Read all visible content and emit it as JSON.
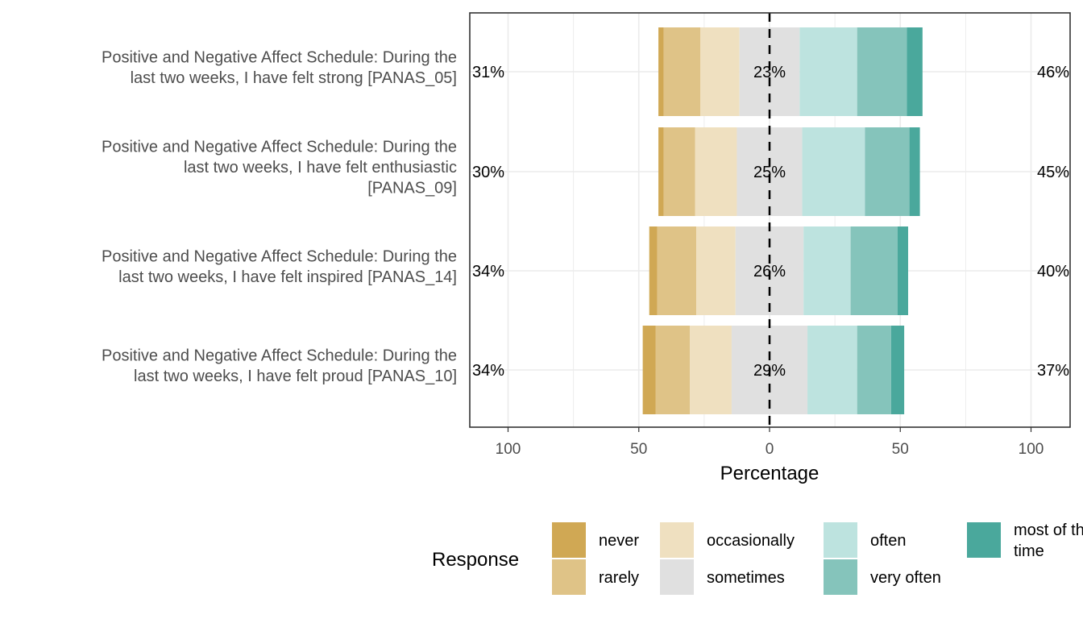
{
  "chart_data": {
    "type": "bar",
    "subtype": "diverging-stacked-likert",
    "xlabel": "Percentage",
    "x_ticks": [
      "100",
      "50",
      "0",
      "50",
      "100"
    ],
    "xlim": [
      -100,
      100
    ],
    "legend_title": "Response",
    "legend_position": "bottom",
    "grid": true,
    "levels": [
      {
        "name": "never",
        "color": "#D0A854"
      },
      {
        "name": "rarely",
        "color": "#DFC387"
      },
      {
        "name": "occasionally",
        "color": "#EFE0C0"
      },
      {
        "name": "sometimes",
        "color": "#E0E0E0"
      },
      {
        "name": "often",
        "color": "#BDE3DF"
      },
      {
        "name": "very often",
        "color": "#85C4BB"
      },
      {
        "name": "most of the time",
        "color": "#4AA89C"
      }
    ],
    "legend_display": [
      {
        "line1": "never"
      },
      {
        "line1": "rarely"
      },
      {
        "line1": "occasionally"
      },
      {
        "line1": "sometimes"
      },
      {
        "line1": "often"
      },
      {
        "line1": "very often"
      },
      {
        "line1": "most of the",
        "line2": "time"
      }
    ],
    "items": [
      {
        "label_lines": [
          "Positive and Negative Affect Schedule: During the",
          "last two weeks, I have felt strong [PANAS_05]"
        ],
        "values": [
          2,
          14,
          15,
          23,
          22,
          19,
          6
        ],
        "left_label": "31%",
        "center_label": "23%",
        "right_label": "46%"
      },
      {
        "label_lines": [
          "Positive and Negative Affect Schedule: During the",
          "last two weeks, I have felt enthusiastic",
          "[PANAS_09]"
        ],
        "values": [
          2,
          12,
          16,
          25,
          24,
          17,
          4
        ],
        "left_label": "30%",
        "center_label": "25%",
        "right_label": "45%"
      },
      {
        "label_lines": [
          "Positive and Negative Affect Schedule: During the",
          "last two weeks, I have felt inspired [PANAS_14]"
        ],
        "values": [
          3,
          15,
          15,
          26,
          18,
          18,
          4
        ],
        "left_label": "34%",
        "center_label": "26%",
        "right_label": "40%"
      },
      {
        "label_lines": [
          "Positive and Negative Affect Schedule: During the",
          "last two weeks, I have felt proud [PANAS_10]"
        ],
        "values": [
          5,
          13,
          16,
          29,
          19,
          13,
          5
        ],
        "left_label": "34%",
        "center_label": "29%",
        "right_label": "37%"
      }
    ]
  }
}
